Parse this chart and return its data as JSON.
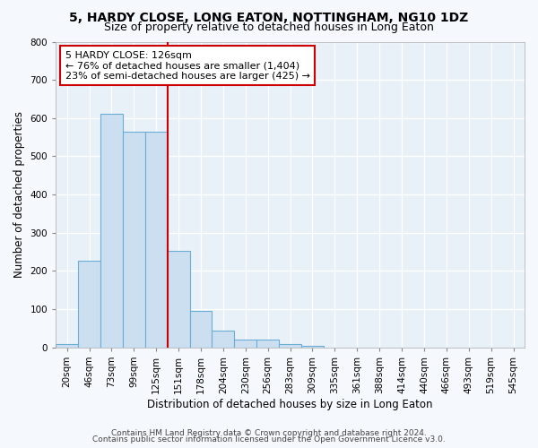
{
  "title": "5, HARDY CLOSE, LONG EATON, NOTTINGHAM, NG10 1DZ",
  "subtitle": "Size of property relative to detached houses in Long Eaton",
  "xlabel": "Distribution of detached houses by size in Long Eaton",
  "ylabel": "Number of detached properties",
  "bar_color": "#ccdff0",
  "bar_edge_color": "#6aaed6",
  "categories": [
    "20sqm",
    "46sqm",
    "73sqm",
    "99sqm",
    "125sqm",
    "151sqm",
    "178sqm",
    "204sqm",
    "230sqm",
    "256sqm",
    "283sqm",
    "309sqm",
    "335sqm",
    "361sqm",
    "388sqm",
    "414sqm",
    "440sqm",
    "466sqm",
    "493sqm",
    "519sqm",
    "545sqm"
  ],
  "values": [
    10,
    228,
    611,
    565,
    565,
    253,
    96,
    43,
    20,
    20,
    10,
    5,
    0,
    0,
    0,
    0,
    0,
    0,
    0,
    0,
    0
  ],
  "prop_line_bin_idx": 4,
  "annotation_line1": "5 HARDY CLOSE: 126sqm",
  "annotation_line2": "← 76% of detached houses are smaller (1,404)",
  "annotation_line3": "23% of semi-detached houses are larger (425) →",
  "annotation_box_facecolor": "#ffffff",
  "annotation_box_edgecolor": "#cc0000",
  "prop_line_color": "#cc0000",
  "ylim": [
    0,
    800
  ],
  "yticks": [
    0,
    100,
    200,
    300,
    400,
    500,
    600,
    700,
    800
  ],
  "fig_facecolor": "#f5f8fc",
  "ax_facecolor": "#e8f0f8",
  "grid_color": "#ffffff",
  "title_fontsize": 10,
  "subtitle_fontsize": 9,
  "xlabel_fontsize": 8.5,
  "ylabel_fontsize": 8.5,
  "tick_fontsize": 7.5,
  "annotation_fontsize": 8,
  "footer_fontsize": 6.5,
  "footer_line1": "Contains HM Land Registry data © Crown copyright and database right 2024.",
  "footer_line2": "Contains public sector information licensed under the Open Government Licence v3.0."
}
